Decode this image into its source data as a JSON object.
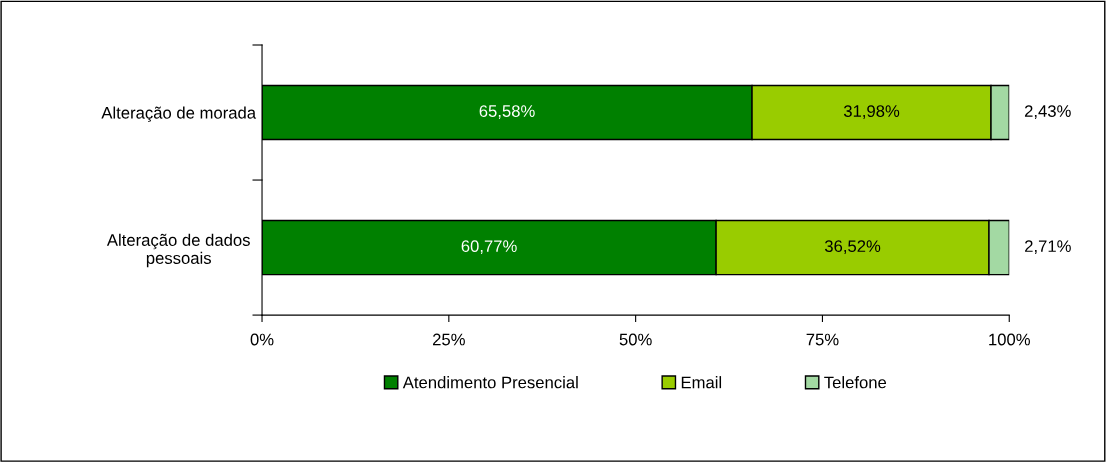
{
  "chart_data": {
    "type": "bar",
    "orientation": "horizontal",
    "stacked": true,
    "categories": [
      "Alteração de morada",
      "Alteração de dados\npessoais"
    ],
    "series": [
      {
        "name": "Atendimento Presencial",
        "color": "#008000",
        "values": [
          65.58,
          60.77
        ],
        "value_labels": [
          "65,58%",
          "60,77%"
        ]
      },
      {
        "name": "Email",
        "color": "#99cc00",
        "values": [
          31.98,
          36.52
        ],
        "value_labels": [
          "31,98%",
          "36,52%"
        ]
      },
      {
        "name": "Telefone",
        "color": "#a3d9a3",
        "values": [
          2.43,
          2.71
        ],
        "value_labels": [
          "2,43%",
          "2,71%"
        ]
      }
    ],
    "xlim": [
      0,
      100
    ],
    "xticks": [
      {
        "value": 0,
        "label": "0%"
      },
      {
        "value": 25,
        "label": "25%"
      },
      {
        "value": 50,
        "label": "50%"
      },
      {
        "value": 75,
        "label": "75%"
      },
      {
        "value": 100,
        "label": "100%"
      }
    ],
    "grid": false,
    "legend": "bottom"
  }
}
